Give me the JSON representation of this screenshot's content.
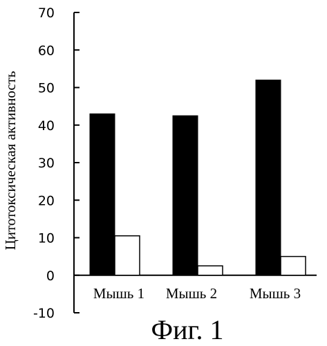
{
  "chart_data": {
    "type": "bar",
    "categories": [
      "Мышь 1",
      "Мышь 2",
      "Мышь 3"
    ],
    "series": [
      {
        "values": [
          43,
          42.5,
          52
        ],
        "color": "#000000",
        "fill": "solid"
      },
      {
        "values": [
          10.5,
          2.5,
          5
        ],
        "color": "#000000",
        "fill": "hollow"
      }
    ],
    "ylabel": "Цитотоксическая активность",
    "ylim": [
      -10,
      70
    ],
    "yticks": [
      "-10",
      "0",
      "10",
      "20",
      "30",
      "40",
      "50",
      "60",
      "70"
    ],
    "grid": false,
    "legend": "none"
  },
  "figure_caption": "Фиг. 1"
}
